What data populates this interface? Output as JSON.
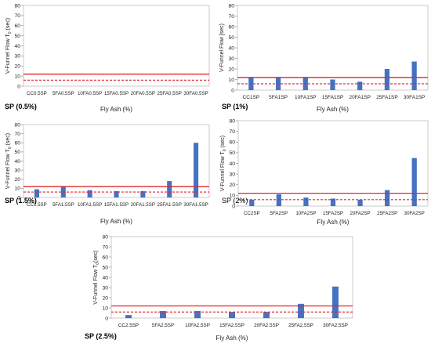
{
  "chart_data": [
    {
      "type": "bar",
      "panel_label": "SP (0.5%)",
      "panel_label_bold": true,
      "xlabel": "Fly Ash (%)",
      "ylabel": "V-Funnel Flow T",
      "ylabel_sub": "0",
      "ylabel_tail": " (sec)",
      "ylim": [
        0,
        80
      ],
      "yticks": [
        0,
        10,
        20,
        30,
        40,
        50,
        60,
        70,
        80
      ],
      "categories": [
        "CC0.5SP",
        "5FA0.5SP",
        "10FA0.5SP",
        "15FA0.5SP",
        "20FA0.5SP",
        "25FA0.5SP",
        "30FA0.5SP"
      ],
      "values": [
        0,
        0,
        0,
        0,
        0,
        0,
        0
      ],
      "upper_limit": 12,
      "lower_limit": 6,
      "bar_color": "#4472c4",
      "limit_color": "#e3262b"
    },
    {
      "type": "bar",
      "panel_label": "SP (1%)",
      "panel_label_bold": true,
      "xlabel": "Fly Ash (%)",
      "ylabel": "V-Funnel Flow [sec)",
      "ylabel_sub": "",
      "ylabel_tail": "",
      "ylim": [
        0,
        80
      ],
      "yticks": [
        0,
        10,
        20,
        30,
        40,
        50,
        60,
        70,
        80
      ],
      "categories": [
        "CC1SP",
        "5FA1SP",
        "10FA1SP",
        "15FA1SP",
        "20FA1SP",
        "25FA1SP",
        "30FA1SP"
      ],
      "values": [
        12,
        12,
        12,
        10,
        8,
        20,
        27
      ],
      "upper_limit": 12,
      "lower_limit": 6,
      "bar_color": "#4472c4",
      "limit_color": "#e3262b"
    },
    {
      "type": "bar",
      "panel_label": "SP (1.5%)",
      "panel_label_bold": true,
      "xlabel": "Fly Ash (%)",
      "ylabel": "V-Funnel Flow T",
      "ylabel_sub": "0",
      "ylabel_tail": " (sec)",
      "ylim": [
        0,
        80
      ],
      "yticks": [
        0,
        10,
        20,
        30,
        40,
        50,
        60,
        70,
        80
      ],
      "categories": [
        "CC1.5SP",
        "5FA1.5SP",
        "10FA1.5SP",
        "15FA1.5SP",
        "20FA1.5SP",
        "25FA1.5SP",
        "30FA1.5SP"
      ],
      "values": [
        9,
        12,
        8,
        7,
        7,
        18,
        60
      ],
      "upper_limit": 12,
      "lower_limit": 6,
      "bar_color": "#4472c4",
      "limit_color": "#e3262b"
    },
    {
      "type": "bar",
      "panel_label": "SP (2%)",
      "panel_label_bold": false,
      "xlabel": "Fly Ash (%)",
      "ylabel": "V-Funnel Flow T",
      "ylabel_sub": "0",
      "ylabel_tail": " (sec)",
      "ylim": [
        0,
        80
      ],
      "yticks": [
        0,
        10,
        20,
        30,
        40,
        50,
        60,
        70,
        80
      ],
      "categories": [
        "CC2SP",
        "5FA2SP",
        "10FA2SP",
        "15FA2SP",
        "20FA2SP",
        "25FA2SP",
        "30FA2SP"
      ],
      "values": [
        6,
        11,
        8,
        7,
        6,
        15,
        45
      ],
      "upper_limit": 12,
      "lower_limit": 6,
      "bar_color": "#4472c4",
      "limit_color": "#e3262b"
    },
    {
      "type": "bar",
      "panel_label": "SP (2.5%)",
      "panel_label_bold": true,
      "xlabel": "Fly Ash (%)",
      "ylabel": "V-Funnel Flow T",
      "ylabel_sub": "0",
      "ylabel_tail": "(sec)",
      "ylim": [
        0,
        80
      ],
      "yticks": [
        0,
        10,
        20,
        30,
        40,
        50,
        60,
        70,
        80
      ],
      "categories": [
        "CC2.5SP",
        "5FA2.5SP",
        "10FA2.5SP",
        "15FA2.5SP",
        "20FA2.5SP",
        "25FA2.5SP",
        "30FA2.5SP"
      ],
      "values": [
        3,
        7,
        7,
        6,
        6,
        14,
        31
      ],
      "upper_limit": 12,
      "lower_limit": 6,
      "bar_color": "#4472c4",
      "limit_color": "#e3262b"
    }
  ]
}
